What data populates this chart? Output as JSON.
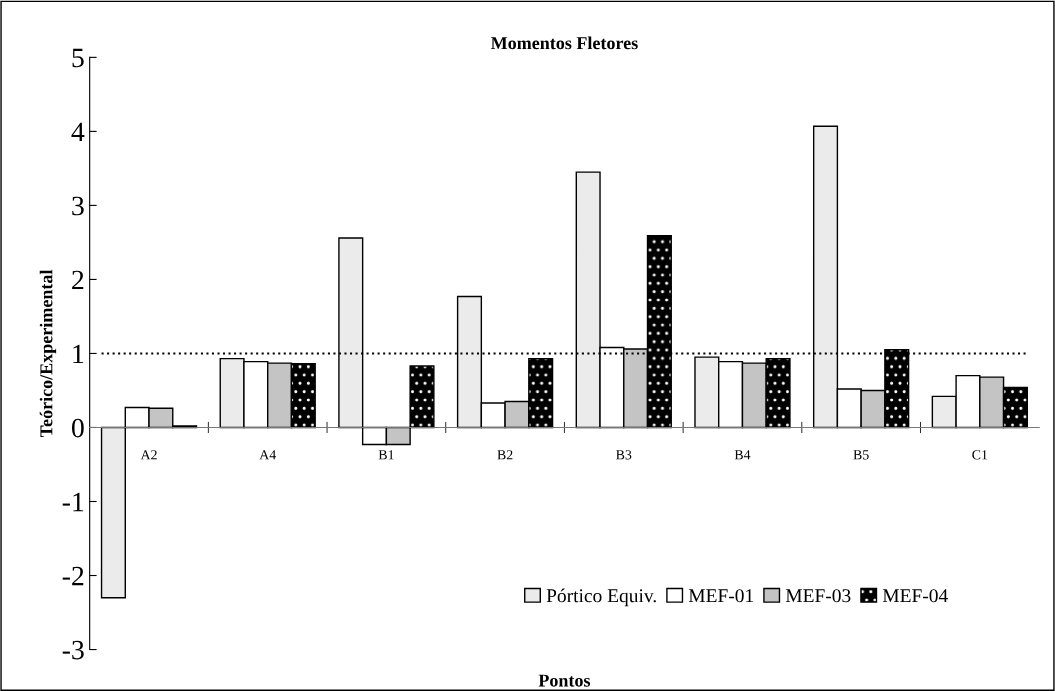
{
  "chart_data": {
    "type": "bar",
    "title": "Momentos Fletores",
    "xlabel": "Pontos",
    "ylabel": "Teórico/Experimental",
    "categories": [
      "A2",
      "A4",
      "B1",
      "B2",
      "B3",
      "B4",
      "B5",
      "C1"
    ],
    "series": [
      {
        "name": "Pórtico Equiv.",
        "color": "#ebebeb",
        "values": [
          -2.3,
          0.93,
          2.56,
          1.77,
          3.45,
          0.95,
          4.07,
          0.42
        ]
      },
      {
        "name": "MEF-01",
        "color": "#ffffff",
        "values": [
          0.27,
          0.89,
          -0.23,
          0.33,
          1.08,
          0.89,
          0.52,
          0.7
        ]
      },
      {
        "name": "MEF-03",
        "color": "#c4c4c4",
        "values": [
          0.26,
          0.87,
          -0.23,
          0.35,
          1.06,
          0.87,
          0.5,
          0.68
        ]
      },
      {
        "name": "MEF-04",
        "color": "#000000",
        "values": [
          0.02,
          0.86,
          0.83,
          0.93,
          2.59,
          0.93,
          1.05,
          0.54
        ]
      }
    ],
    "ylim": [
      -3,
      5
    ],
    "yticks": [
      -3,
      -2,
      -1,
      0,
      1,
      2,
      3,
      4,
      5
    ],
    "ref_lines": [
      {
        "axis": "y",
        "value": 1,
        "line_style": "dotted"
      }
    ],
    "grid": false,
    "legend": "bottom right"
  }
}
